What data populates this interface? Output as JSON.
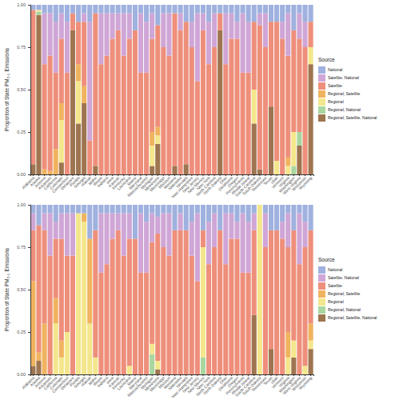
{
  "chart_data": [
    {
      "type": "bar",
      "stacked": true,
      "legend": "right",
      "y_label": "Proportion of State PM₂.₅ Emissions",
      "legend_title": "Source",
      "categories": [
        "Alabama",
        "Alaska",
        "Arizona",
        "Arkansas",
        "California",
        "Colorado",
        "Connecticut",
        "Delaware",
        "Florida",
        "Georgia",
        "Hawaii",
        "Idaho",
        "Illinois",
        "Indiana",
        "Iowa",
        "Kansas",
        "Kentucky",
        "Louisiana",
        "Maine",
        "Maryland",
        "Massachusetts",
        "Michigan",
        "Minnesota",
        "Mississippi",
        "Missouri",
        "Montana",
        "Nebraska",
        "Nevada",
        "New Hampshire",
        "New Jersey",
        "New Mexico",
        "New York",
        "North Carolina",
        "North Dakota",
        "Ohio",
        "Oklahoma",
        "Oregon",
        "Pennsylvania",
        "Rhode Island",
        "South Carolina",
        "South Dakota",
        "Tennessee",
        "Texas",
        "Utah",
        "Vermont",
        "Virginia",
        "Washington",
        "West Virginia",
        "Wisconsin",
        "Wyoming"
      ],
      "ylim": [
        0,
        1
      ],
      "yticks": [
        {
          "value": 0,
          "label": "0.00"
        },
        {
          "value": 0.25,
          "label": "0.25"
        },
        {
          "value": 0.5,
          "label": "0.50"
        },
        {
          "value": 0.75,
          "label": "0.75"
        },
        {
          "value": 1,
          "label": "1.00"
        }
      ],
      "series": [
        {
          "name": "National",
          "color": "#9fb1de",
          "values": [
            0.03,
            0.03,
            0.05,
            0.05,
            0.1,
            0.05,
            0.1,
            0.05,
            0.1,
            0.05,
            0.1,
            0.05,
            0.05,
            0.05,
            0.05,
            0.05,
            0.05,
            0.05,
            0.15,
            0.05,
            0.1,
            0.05,
            0.12,
            0.05,
            0.05,
            0.05,
            0.05,
            0.1,
            0.1,
            0.05,
            0.05,
            0.1,
            0.05,
            0.05,
            0.05,
            0.05,
            0.1,
            0.05,
            0.1,
            0.1,
            0.05,
            0.05,
            0.1,
            0.1,
            0.1,
            0.05,
            0.15,
            0.05,
            0.1,
            0.1
          ]
        },
        {
          "name": "Satellite, National",
          "color": "#cfa6d6",
          "values": [
            0,
            0,
            0.3,
            0.25,
            0.3,
            0.15,
            0.3,
            0,
            0,
            0.05,
            0.7,
            0,
            0.3,
            0.25,
            0.15,
            0.1,
            0.25,
            0.15,
            0,
            0.35,
            0.3,
            0.15,
            0,
            0.2,
            0.25,
            0,
            0.1,
            0,
            0.15,
            0.4,
            0.1,
            0.25,
            0.2,
            0,
            0.3,
            0.15,
            0.1,
            0.35,
            0.3,
            0,
            0.07,
            0.2,
            0,
            0,
            0.1,
            0.25,
            0,
            0.15,
            0.15,
            0
          ]
        },
        {
          "name": "Satellite",
          "color": "#ee8f7b",
          "values": [
            0.91,
            0,
            0.62,
            0.68,
            0.45,
            0.38,
            0.6,
            0.1,
            0.25,
            0.38,
            0.2,
            0.9,
            0.65,
            0.7,
            0.8,
            0.85,
            0.7,
            0.8,
            0.85,
            0.6,
            0.6,
            0.55,
            0.6,
            0.75,
            0.7,
            0.9,
            0.85,
            0.84,
            0.75,
            0.55,
            0.85,
            0.65,
            0.75,
            0.1,
            0.65,
            0.8,
            0.8,
            0.6,
            0.6,
            0.4,
            0.85,
            0.75,
            0.5,
            0.82,
            0.8,
            0.6,
            0.6,
            0.55,
            0.75,
            0.15
          ]
        },
        {
          "name": "Regional, Satellite",
          "color": "#f0b35f",
          "values": [
            0,
            0,
            0.03,
            0.02,
            0.15,
            0.1,
            0,
            0,
            0.1,
            0.1,
            0,
            0,
            0,
            0,
            0,
            0,
            0,
            0,
            0,
            0,
            0,
            0.08,
            0.05,
            0,
            0,
            0,
            0,
            0,
            0,
            0,
            0,
            0,
            0,
            0,
            0,
            0,
            0,
            0,
            0,
            0,
            0,
            0,
            0,
            0,
            0,
            0.05,
            0,
            0,
            0,
            0
          ]
        },
        {
          "name": "Regional",
          "color": "#f4e68c",
          "values": [
            0,
            0.01,
            0,
            0,
            0,
            0.25,
            0,
            0,
            0.25,
            0,
            0,
            0,
            0,
            0,
            0,
            0,
            0,
            0,
            0,
            0,
            0,
            0.12,
            0.05,
            0,
            0,
            0,
            0,
            0,
            0,
            0,
            0,
            0,
            0,
            0,
            0,
            0,
            0,
            0,
            0,
            0.2,
            0,
            0,
            0,
            0.08,
            0,
            0.05,
            0.2,
            0,
            0,
            0.1
          ]
        },
        {
          "name": "Regional, National",
          "color": "#a9d69f",
          "values": [
            0,
            0.02,
            0,
            0,
            0,
            0,
            0,
            0,
            0,
            0,
            0,
            0,
            0,
            0,
            0,
            0,
            0,
            0,
            0,
            0,
            0,
            0,
            0,
            0,
            0,
            0,
            0,
            0,
            0,
            0,
            0,
            0,
            0,
            0,
            0,
            0,
            0,
            0,
            0,
            0,
            0,
            0,
            0,
            0,
            0,
            0,
            0.05,
            0.08,
            0,
            0
          ]
        },
        {
          "name": "Regional, Satellite, National",
          "color": "#9e7550",
          "values": [
            0.06,
            0.94,
            0,
            0,
            0,
            0.07,
            0,
            0.85,
            0.3,
            0.42,
            0,
            0.05,
            0,
            0,
            0,
            0,
            0,
            0,
            0,
            0,
            0,
            0.05,
            0.18,
            0,
            0,
            0.05,
            0,
            0.06,
            0,
            0,
            0,
            0,
            0,
            0.85,
            0,
            0,
            0,
            0,
            0,
            0.3,
            0.03,
            0,
            0.4,
            0,
            0,
            0,
            0,
            0.17,
            0,
            0.65
          ]
        }
      ]
    },
    {
      "type": "bar",
      "stacked": true,
      "legend": "right",
      "y_label": "Proportion of State PM₂.₅ Emissions",
      "legend_title": "Source",
      "categories": [
        "Alabama",
        "Alaska",
        "Arizona",
        "Arkansas",
        "California",
        "Colorado",
        "Connecticut",
        "Delaware",
        "Florida",
        "Georgia",
        "Hawaii",
        "Idaho",
        "Illinois",
        "Indiana",
        "Iowa",
        "Kansas",
        "Kentucky",
        "Louisiana",
        "Maine",
        "Maryland",
        "Massachusetts",
        "Michigan",
        "Minnesota",
        "Mississippi",
        "Missouri",
        "Montana",
        "Nebraska",
        "Nevada",
        "New Hampshire",
        "New Jersey",
        "New Mexico",
        "New York",
        "North Carolina",
        "North Dakota",
        "Ohio",
        "Oklahoma",
        "Oregon",
        "Pennsylvania",
        "Rhode Island",
        "South Carolina",
        "South Dakota",
        "Tennessee",
        "Texas",
        "Utah",
        "Vermont",
        "Virginia",
        "Washington",
        "West Virginia",
        "Wisconsin",
        "Wyoming"
      ],
      "ylim": [
        0,
        1
      ],
      "yticks": [
        {
          "value": 0,
          "label": "0.00"
        },
        {
          "value": 0.25,
          "label": "0.25"
        },
        {
          "value": 0.5,
          "label": "0.50"
        },
        {
          "value": 0.75,
          "label": "0.75"
        },
        {
          "value": 1,
          "label": "1.00"
        }
      ],
      "series": [
        {
          "name": "National",
          "color": "#9fb1de",
          "values": [
            0.05,
            0.12,
            0.05,
            0.05,
            0.1,
            0.05,
            0.05,
            0.05,
            0.05,
            0.05,
            0.2,
            0.15,
            0.05,
            0.05,
            0.05,
            0.05,
            0.05,
            0.05,
            0.2,
            0.05,
            0.1,
            0.05,
            0.07,
            0.05,
            0.05,
            0.15,
            0.05,
            0.15,
            0.1,
            0.05,
            0.15,
            0.1,
            0.05,
            0.15,
            0.05,
            0.05,
            0.1,
            0.05,
            0.1,
            0.05,
            0,
            0.05,
            0.15,
            0.15,
            0.1,
            0.05,
            0.15,
            0.05,
            0.1,
            0.15
          ]
        },
        {
          "name": "Satellite, National",
          "color": "#cfa6d6",
          "values": [
            0.1,
            0,
            0.1,
            0.25,
            0.1,
            0.15,
            0.25,
            0.25,
            0,
            0,
            0,
            0,
            0.35,
            0.3,
            0.15,
            0.1,
            0.25,
            0.15,
            0,
            0.35,
            0.3,
            0.17,
            0.1,
            0.2,
            0.25,
            0,
            0.1,
            0,
            0.2,
            0.4,
            0,
            0.25,
            0.2,
            0,
            0.3,
            0.15,
            0.1,
            0.35,
            0.3,
            0.1,
            0,
            0.2,
            0,
            0,
            0.1,
            0.2,
            0,
            0.3,
            0.15,
            0
          ]
        },
        {
          "name": "Satellite",
          "color": "#ee8f7b",
          "values": [
            0.3,
            0.75,
            0.55,
            0.7,
            0.35,
            0.6,
            0.45,
            0.7,
            0,
            0,
            0,
            0.75,
            0.6,
            0.65,
            0.8,
            0.85,
            0.7,
            0.75,
            0.8,
            0.6,
            0.6,
            0.6,
            0.75,
            0.75,
            0.7,
            0.85,
            0.85,
            0.85,
            0.7,
            0.55,
            0.1,
            0.65,
            0.75,
            0.85,
            0.65,
            0.8,
            0.8,
            0.6,
            0.6,
            0.5,
            0,
            0.75,
            0.7,
            0.85,
            0.8,
            0.5,
            0.65,
            0.65,
            0.7,
            0.55
          ]
        },
        {
          "name": "Regional, Satellite",
          "color": "#f0b35f",
          "values": [
            0.5,
            0.05,
            0.3,
            0,
            0.15,
            0.1,
            0,
            0,
            0,
            0.05,
            0.5,
            0,
            0,
            0,
            0,
            0,
            0,
            0,
            0,
            0,
            0,
            0,
            0,
            0,
            0,
            0,
            0,
            0,
            0,
            0,
            0,
            0,
            0,
            0,
            0,
            0,
            0,
            0,
            0,
            0,
            0,
            0,
            0,
            0,
            0,
            0.15,
            0,
            0,
            0,
            0.1
          ]
        },
        {
          "name": "Regional",
          "color": "#f4e68c",
          "values": [
            0,
            0,
            0,
            0,
            0.3,
            0.1,
            0.25,
            0,
            0.95,
            0.9,
            0.3,
            0.1,
            0,
            0,
            0,
            0,
            0,
            0.05,
            0,
            0,
            0,
            0.06,
            0.05,
            0,
            0,
            0,
            0,
            0,
            0,
            0,
            0.65,
            0,
            0,
            0,
            0,
            0,
            0,
            0,
            0,
            0,
            1,
            0,
            0,
            0,
            0,
            0.1,
            0.1,
            0,
            0.05,
            0.05
          ]
        },
        {
          "name": "Regional, National",
          "color": "#a9d69f",
          "values": [
            0,
            0,
            0,
            0,
            0,
            0,
            0,
            0,
            0,
            0,
            0,
            0,
            0,
            0,
            0,
            0,
            0,
            0,
            0,
            0,
            0,
            0.12,
            0,
            0,
            0,
            0,
            0,
            0,
            0,
            0,
            0.1,
            0,
            0,
            0,
            0,
            0,
            0,
            0,
            0,
            0,
            0,
            0,
            0,
            0,
            0,
            0,
            0,
            0,
            0,
            0
          ]
        },
        {
          "name": "Regional, Satellite, National",
          "color": "#9e7550",
          "values": [
            0.05,
            0.08,
            0,
            0,
            0,
            0,
            0,
            0,
            0,
            0,
            0,
            0,
            0,
            0,
            0,
            0,
            0,
            0,
            0,
            0,
            0,
            0,
            0.03,
            0,
            0,
            0,
            0,
            0,
            0,
            0,
            0,
            0,
            0,
            0,
            0,
            0,
            0,
            0,
            0,
            0.35,
            0,
            0,
            0.15,
            0,
            0,
            0,
            0.1,
            0,
            0,
            0.15
          ]
        }
      ]
    }
  ]
}
